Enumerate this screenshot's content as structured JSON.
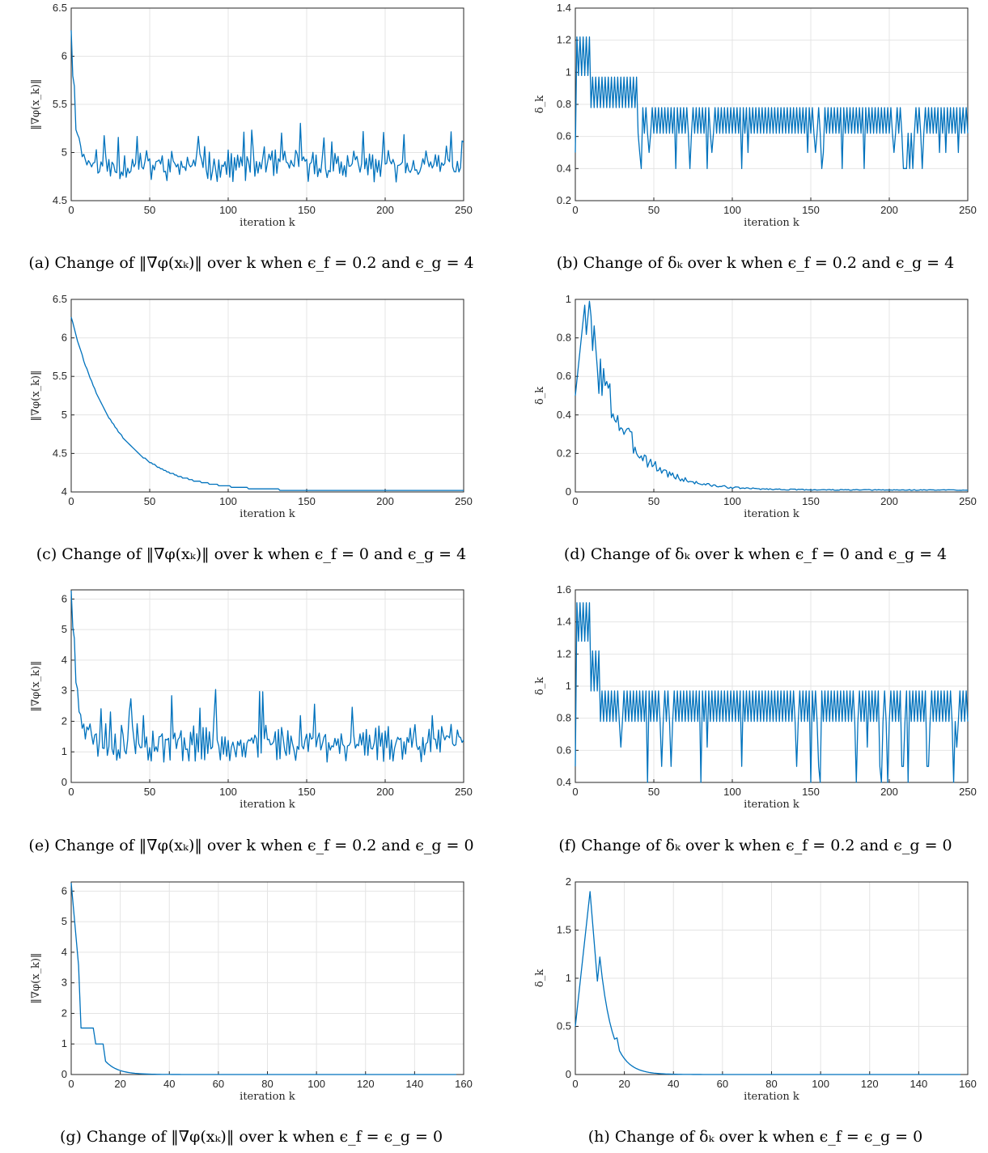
{
  "chart_data": [
    {
      "id": "a",
      "type": "line",
      "ylim": [
        4.5,
        6.5
      ],
      "yticks": [
        "4.5",
        "5",
        "5.5",
        "6",
        "6.5"
      ],
      "xticks": [
        "0",
        "50",
        "100",
        "150",
        "200",
        "250"
      ],
      "xlim": [
        0,
        250
      ],
      "xlabel": "iteration k",
      "ylabel": "‖∇φ(x_k)‖",
      "caption": "(a) Change of ‖∇φ(xₖ)‖ over k when ϵ_f = 0.2 and ϵ_g = 4",
      "series": [
        {
          "color": "#0072bd",
          "profile": "noisy",
          "start": 6.27,
          "level": 4.85,
          "amp": 0.12,
          "decay": 3,
          "n": 251,
          "seed": 11
        }
      ]
    },
    {
      "id": "b",
      "type": "line",
      "ylim": [
        0.2,
        1.4
      ],
      "yticks": [
        "0.2",
        "0.4",
        "0.6",
        "0.8",
        "1",
        "1.2",
        "1.4"
      ],
      "xticks": [
        "0",
        "50",
        "100",
        "150",
        "200",
        "250"
      ],
      "xlim": [
        0,
        250
      ],
      "xlabel": "iteration k",
      "ylabel": "δ_k",
      "caption": "(b) Change of δₖ over k when ϵ_f = 0.2 and ϵ_g = 4",
      "series": [
        {
          "color": "#0072bd",
          "profile": "osc",
          "start": 0.5,
          "peak": 1.22,
          "hi": 0.78,
          "lo": 0.62,
          "lowvals": [
            0.4,
            0.5
          ],
          "n": 251,
          "seed": 7
        }
      ]
    },
    {
      "id": "c",
      "type": "line",
      "ylim": [
        4,
        6.5
      ],
      "yticks": [
        "4",
        "4.5",
        "5",
        "5.5",
        "6",
        "6.5"
      ],
      "xticks": [
        "0",
        "50",
        "100",
        "150",
        "200",
        "250"
      ],
      "xlim": [
        0,
        250
      ],
      "xlabel": "iteration k",
      "ylabel": "‖∇φ(x_k)‖",
      "caption": "(c) Change of ‖∇φ(xₖ)‖ over k when ϵ_f = 0 and ϵ_g = 4",
      "series": [
        {
          "color": "#0072bd",
          "profile": "decay",
          "start": 6.27,
          "end": 4.01,
          "tau": 28,
          "n": 251,
          "step": 3
        }
      ]
    },
    {
      "id": "d",
      "type": "line",
      "ylim": [
        0,
        1
      ],
      "yticks": [
        "0",
        "0.2",
        "0.4",
        "0.6",
        "0.8",
        "1"
      ],
      "xticks": [
        "0",
        "50",
        "100",
        "150",
        "200",
        "250"
      ],
      "xlim": [
        0,
        250
      ],
      "xlabel": "iteration k",
      "ylabel": "δ_k",
      "caption": "(d) Change of δₖ over k when ϵ_f = 0 and ϵ_g = 4",
      "series": [
        {
          "color": "#0072bd",
          "profile": "spikedecay",
          "start": 0.5,
          "peak": 0.97,
          "peakAt": 6,
          "tau": 22,
          "floor": 0.01,
          "n": 251,
          "seed": 3
        }
      ]
    },
    {
      "id": "e",
      "type": "line",
      "ylim": [
        0,
        6.3
      ],
      "yticks": [
        "0",
        "1",
        "2",
        "3",
        "4",
        "5",
        "6"
      ],
      "xticks": [
        "0",
        "50",
        "100",
        "150",
        "200",
        "250"
      ],
      "xlim": [
        0,
        250
      ],
      "xlabel": "iteration k",
      "ylabel": "‖∇φ(x_k)‖",
      "caption": "(e) Change of ‖∇φ(xₖ)‖ over k when ϵ_f = 0.2 and ϵ_g = 0",
      "series": [
        {
          "color": "#0072bd",
          "profile": "noisy",
          "start": 6.27,
          "level": 1.25,
          "amp": 0.45,
          "decay": 4,
          "n": 251,
          "seed": 23
        }
      ]
    },
    {
      "id": "f",
      "type": "line",
      "ylim": [
        0.4,
        1.6
      ],
      "yticks": [
        "0.4",
        "0.6",
        "0.8",
        "1",
        "1.2",
        "1.4",
        "1.6"
      ],
      "xticks": [
        "0",
        "50",
        "100",
        "150",
        "200",
        "250"
      ],
      "xlim": [
        0,
        250
      ],
      "xlabel": "iteration k",
      "ylabel": "δ_k",
      "caption": "(f) Change of δₖ over k when ϵ_f = 0.2 and ϵ_g = 0",
      "series": [
        {
          "color": "#0072bd",
          "profile": "osc",
          "start": 0.5,
          "peak": 1.52,
          "hi": 0.97,
          "lo": 0.78,
          "lowvals": [
            0.5,
            0.62,
            0.4
          ],
          "n": 251,
          "seed": 19
        }
      ]
    },
    {
      "id": "g",
      "type": "line",
      "ylim": [
        0,
        6.3
      ],
      "yticks": [
        "0",
        "1",
        "2",
        "3",
        "4",
        "5",
        "6"
      ],
      "xticks": [
        "0",
        "20",
        "40",
        "60",
        "80",
        "100",
        "120",
        "140",
        "160"
      ],
      "xlim": [
        0,
        160
      ],
      "xlabel": "iteration k",
      "ylabel": "‖∇φ(x_k)‖",
      "caption": "(g) Change of ‖∇φ(xₖ)‖ over k when ϵ_f = ϵ_g = 0",
      "series": [
        {
          "color": "#0072bd",
          "profile": "fastdecay",
          "start": 6.27,
          "end": 0,
          "tau": 6,
          "n": 158
        }
      ]
    },
    {
      "id": "h",
      "type": "line",
      "ylim": [
        0,
        2
      ],
      "yticks": [
        "0",
        "0.5",
        "1",
        "1.5",
        "2"
      ],
      "xticks": [
        "0",
        "20",
        "40",
        "60",
        "80",
        "100",
        "120",
        "140",
        "160"
      ],
      "xlim": [
        0,
        160
      ],
      "xlabel": "iteration k",
      "ylabel": "δ_k",
      "caption": "(h) Change of δₖ over k when ϵ_f = ϵ_g = 0",
      "series": [
        {
          "color": "#0072bd",
          "profile": "bump",
          "start": 0.5,
          "peak": 1.9,
          "peakAt": 6,
          "dip": 0.97,
          "second": 1.22,
          "tau": 5,
          "n": 158
        }
      ]
    }
  ]
}
